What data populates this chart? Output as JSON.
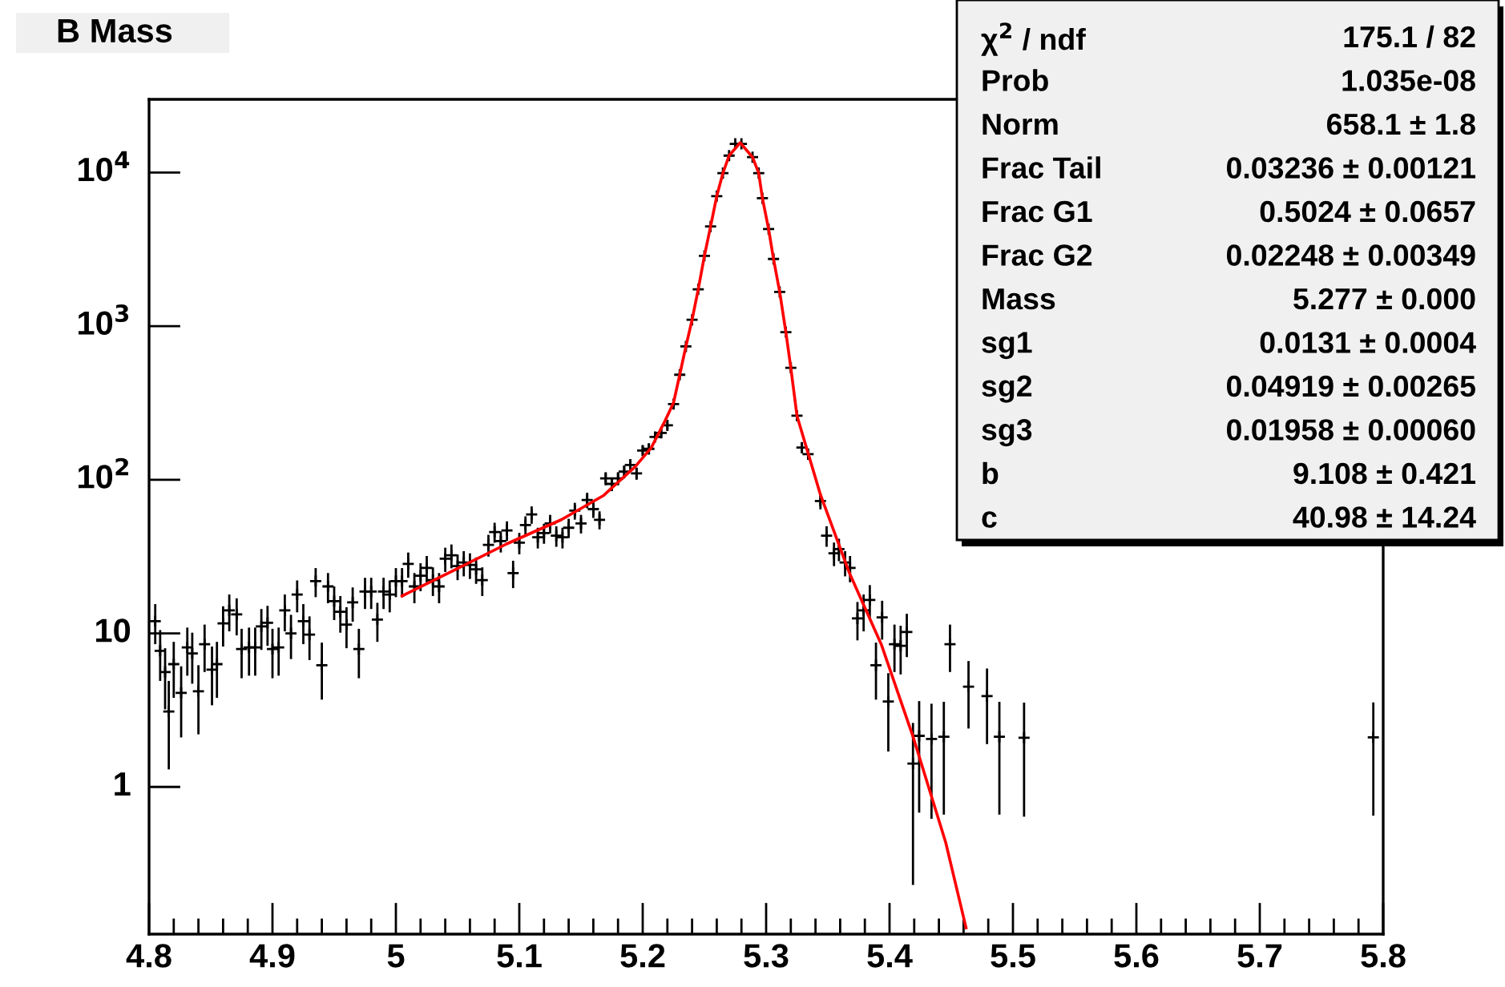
{
  "chart_data": {
    "type": "scatter",
    "title": "B Mass",
    "xlim": [
      4.8,
      5.8
    ],
    "xticks": [
      4.8,
      4.9,
      5,
      5.1,
      5.2,
      5.3,
      5.4,
      5.5,
      5.6,
      5.7,
      5.8
    ],
    "ylim": [
      0.11,
      30000
    ],
    "log": true,
    "yticks": [
      1,
      10,
      {
        "value": 100,
        "label": "10$^{2}$"
      },
      {
        "value": 1000,
        "label": "10$^{3}$"
      },
      {
        "value": 10000,
        "label": "10$^{4}$"
      }
    ],
    "grid": false,
    "series": [
      {
        "color": "#000000",
        "marker": "cross",
        "x": [
          4.805,
          4.809,
          4.813,
          4.816,
          4.82,
          4.826,
          4.831,
          4.835,
          4.84,
          4.845,
          4.851,
          4.855,
          4.86,
          4.865,
          4.871,
          4.875,
          4.881,
          4.886,
          4.891,
          4.896,
          4.9,
          4.905,
          4.91,
          4.915,
          4.92,
          4.925,
          4.93,
          4.935,
          4.94,
          4.945,
          4.95,
          4.955,
          4.96,
          4.965,
          4.97,
          4.975,
          4.98,
          4.985,
          4.99,
          4.995,
          5.0,
          5.005,
          5.01,
          5.015,
          5.02,
          5.025,
          5.03,
          5.035,
          5.04,
          5.045,
          5.05,
          5.055,
          5.06,
          5.065,
          5.07,
          5.075,
          5.08,
          5.085,
          5.09,
          5.095,
          5.1,
          5.105,
          5.11,
          5.115,
          5.12,
          5.125,
          5.13,
          5.135,
          5.14,
          5.145,
          5.15,
          5.155,
          5.16,
          5.165,
          5.17,
          5.175,
          5.18,
          5.185,
          5.19,
          5.195,
          5.2,
          5.205,
          5.21,
          5.215,
          5.22,
          5.225,
          5.23,
          5.235,
          5.24,
          5.245,
          5.25,
          5.255,
          5.26,
          5.265,
          5.27,
          5.275,
          5.28,
          5.289,
          5.294,
          5.297,
          5.302,
          5.306,
          5.311,
          5.316,
          5.32,
          5.325,
          5.329,
          5.334,
          5.344,
          5.349,
          5.355,
          5.359,
          5.364,
          5.368,
          5.374,
          5.379,
          5.384,
          5.389,
          5.394,
          5.399,
          5.404,
          5.409,
          5.414,
          5.419,
          5.424,
          5.434,
          5.444,
          5.449,
          5.464,
          5.479,
          5.489,
          5.509,
          5.792
        ],
        "values": [
          12.0,
          7.7,
          5.6,
          3.1,
          6.3,
          4.1,
          8.1,
          7.4,
          4.2,
          8.5,
          5.8,
          6.3,
          11.6,
          14.1,
          13.3,
          7.9,
          8.1,
          8.1,
          11.1,
          11.7,
          7.9,
          8.1,
          14.1,
          10.0,
          17.9,
          12.0,
          9.8,
          21.9,
          6.2,
          20.2,
          16.2,
          13.8,
          11.4,
          15.9,
          7.9,
          18.7,
          18.7,
          12.3,
          18.7,
          17.9,
          21.9,
          21.9,
          28.3,
          20.2,
          23.7,
          26.7,
          22.2,
          20.2,
          30.6,
          32.2,
          27.4,
          28.9,
          27.9,
          26.1,
          22.2,
          37.7,
          45.7,
          39.9,
          46.8,
          24.7,
          38.9,
          50.7,
          59.4,
          42.2,
          45.0,
          51.9,
          43.2,
          42.2,
          48.7,
          62.9,
          51.9,
          73.8,
          64.4,
          54.9,
          102,
          94,
          102,
          113,
          125,
          110,
          155,
          159,
          190,
          202,
          226,
          311,
          483,
          738,
          1100,
          1740,
          2870,
          4460,
          7030,
          9930,
          12900,
          15400,
          15400,
          12600,
          9930,
          6810,
          4290,
          2740,
          1670,
          914,
          536,
          261,
          162,
          147,
          72.7,
          43.2,
          33.2,
          35.4,
          28.9,
          26.7,
          12.5,
          14.1,
          16.5,
          6.2,
          12.7,
          3.6,
          8.5,
          8.3,
          10.2,
          1.42,
          2.15,
          2.05,
          2.12,
          8.5,
          4.5,
          3.9,
          2.12,
          2.09,
          2.1
        ],
        "errors": [
          3.5,
          2.8,
          2.4,
          1.8,
          2.5,
          2.0,
          2.8,
          2.7,
          2.0,
          2.9,
          2.4,
          2.5,
          3.4,
          3.8,
          3.6,
          2.8,
          2.8,
          2.8,
          3.3,
          3.4,
          2.8,
          2.8,
          3.8,
          3.2,
          4.2,
          3.5,
          3.1,
          4.7,
          2.5,
          4.5,
          4.0,
          3.7,
          3.4,
          4.0,
          2.8,
          4.3,
          4.3,
          3.5,
          4.3,
          4.2,
          4.7,
          4.7,
          5.3,
          4.5,
          4.9,
          5.2,
          4.7,
          4.5,
          5.5,
          5.7,
          5.2,
          5.4,
          5.3,
          5.1,
          4.7,
          6.1,
          6.8,
          6.3,
          6.8,
          5.0,
          6.2,
          7.1,
          7.7,
          6.5,
          6.7,
          7.2,
          6.6,
          6.5,
          7.0,
          7.9,
          7.2,
          8.6,
          8.0,
          7.4,
          10,
          9.7,
          10,
          11,
          11,
          10,
          12,
          13,
          14,
          14,
          15,
          18,
          22,
          27,
          null,
          null,
          null,
          null,
          null,
          null,
          null,
          null,
          null,
          null,
          null,
          null,
          null,
          null,
          null,
          30,
          23,
          16,
          13,
          12,
          8.5,
          6.6,
          5.8,
          5.9,
          5.4,
          5.2,
          3.5,
          3.8,
          4.1,
          2.5,
          3.6,
          1.9,
          2.9,
          2.9,
          3.2,
          1.19,
          1.47,
          1.43,
          1.46,
          2.9,
          2.1,
          2.0,
          1.46,
          1.45,
          1.45
        ]
      },
      {
        "type": "line",
        "color": "#ff0000",
        "marker": "none",
        "x": [
          5.005,
          5.047,
          5.09,
          5.134,
          5.168,
          5.194,
          5.207,
          5.218,
          5.225,
          5.23,
          5.235,
          5.24,
          5.245,
          5.25,
          5.255,
          5.26,
          5.265,
          5.27,
          5.279,
          5.289,
          5.294,
          5.297,
          5.302,
          5.306,
          5.311,
          5.316,
          5.32,
          5.325,
          5.344,
          5.3675,
          5.3935,
          5.4195,
          5.4455,
          5.462
        ],
        "values": [
          17.5,
          25.7,
          38.3,
          54.9,
          78.7,
          122,
          162,
          241,
          318,
          483,
          738,
          1100,
          1740,
          2870,
          4460,
          7030,
          9930,
          12900,
          15660,
          12600,
          9930,
          6810,
          4290,
          2740,
          1670,
          914,
          536,
          261,
          80,
          24.7,
          8.4,
          2.07,
          0.435,
          0.121
        ]
      }
    ],
    "annotations": [
      "χ$^{2}$ / ndf",
      "175.1 / 82",
      "Prob",
      "1.035e-08",
      "Norm",
      "658.1 ± 1.8",
      "Frac Tail",
      "0.03236 ± 0.00121",
      "Frac G1",
      "0.5024 ± 0.0657",
      "Frac G2",
      "0.02248 ± 0.00349",
      "Mass",
      "5.277 ± 0.000",
      "sg1",
      "0.0131 ± 0.0004",
      "sg2",
      "0.04919 ± 0.00265",
      "sg3",
      "0.01958 ± 0.00060",
      "b",
      "9.108 ± 0.421",
      "c",
      "40.98 ± 14.24"
    ]
  }
}
